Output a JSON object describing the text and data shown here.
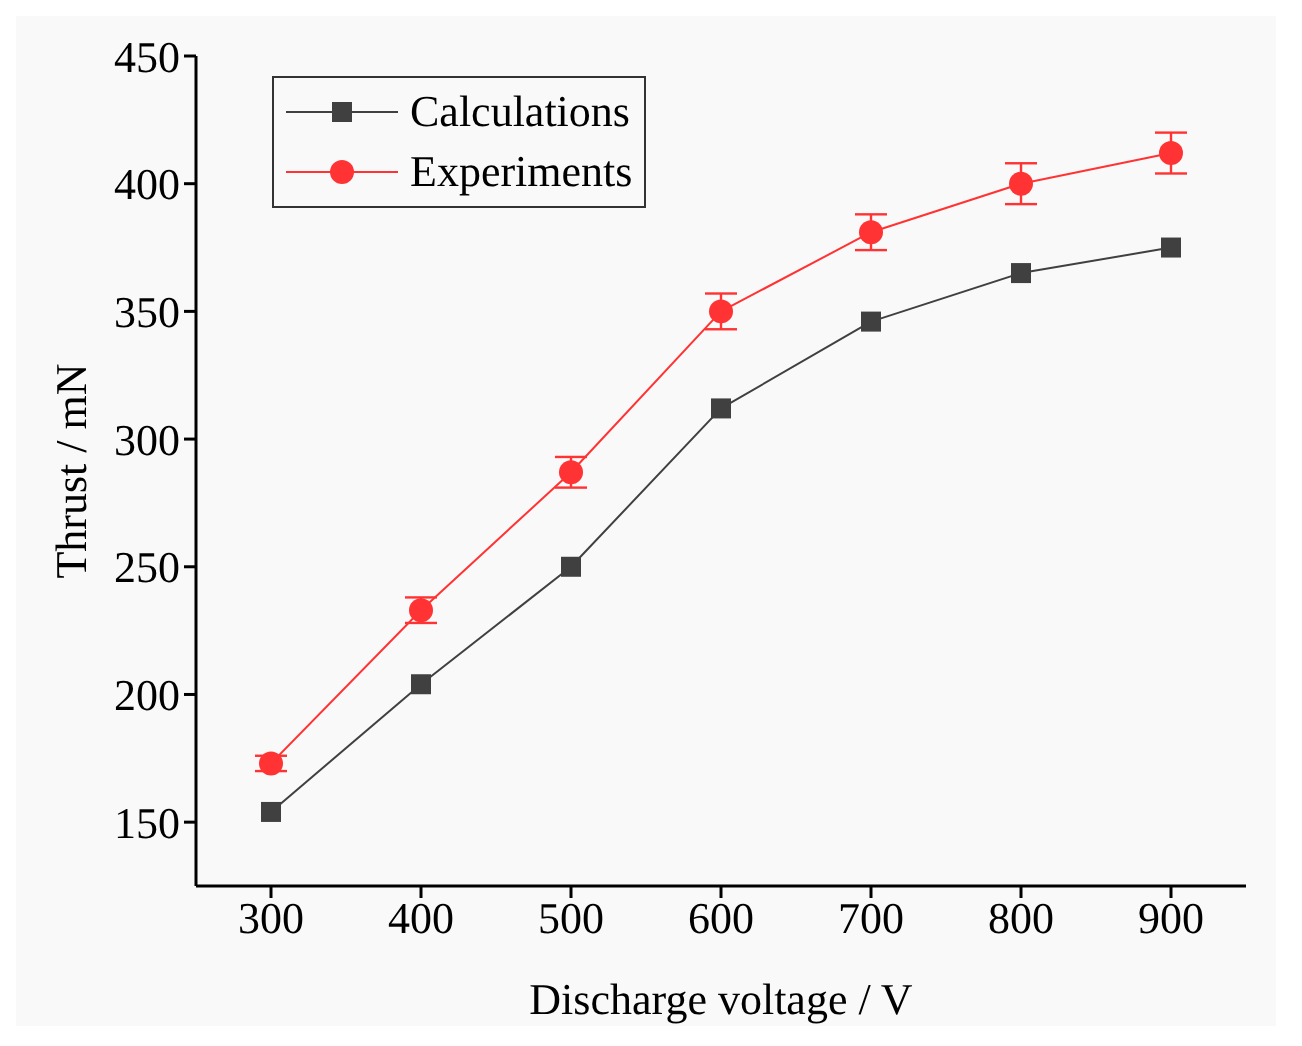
{
  "chart_data": {
    "type": "line",
    "xlabel": "Discharge voltage / V",
    "ylabel": "Thrust / mN",
    "x": [
      300,
      400,
      500,
      600,
      700,
      800,
      900
    ],
    "xlim": [
      250,
      950
    ],
    "xticks": [
      300,
      400,
      500,
      600,
      700,
      800,
      900
    ],
    "ylim": [
      125,
      450
    ],
    "yticks": [
      150,
      200,
      250,
      300,
      350,
      400,
      450
    ],
    "legend": "top left",
    "grid": false,
    "series": [
      {
        "name": "Calculations",
        "color": "#404040",
        "marker": "square",
        "values": [
          154,
          204,
          250,
          312,
          346,
          365,
          375
        ]
      },
      {
        "name": "Experiments",
        "color": "#ff3333",
        "marker": "circle",
        "values": [
          173,
          233,
          287,
          350,
          381,
          400,
          412
        ],
        "errors": [
          3,
          5,
          6,
          7,
          7,
          8,
          8
        ]
      }
    ]
  }
}
